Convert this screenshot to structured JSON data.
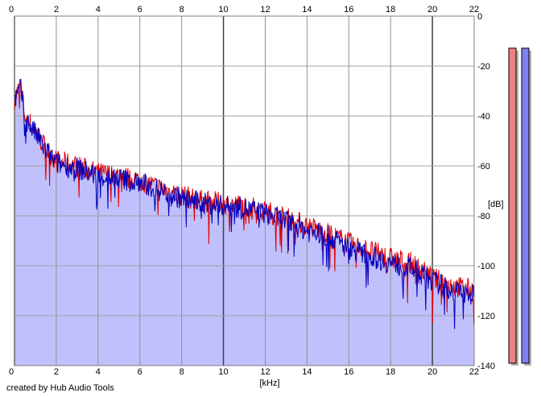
{
  "chart_data": {
    "type": "area",
    "credit": "created by Hub Audio Tools",
    "xlabel": "[kHz]",
    "ylabel": "[dB]",
    "xlim": [
      0,
      22
    ],
    "ylim": [
      -140,
      0
    ],
    "x_ticks": [
      "0",
      "2",
      "4",
      "6",
      "8",
      "10",
      "12",
      "14",
      "16",
      "18",
      "20",
      "22"
    ],
    "y_ticks": [
      "0",
      "-20",
      "-40",
      "-60",
      "-80",
      "-100",
      "-120",
      "-140"
    ],
    "grid": true,
    "fill_color": "#c0c0fc",
    "series": [
      {
        "color": "#e00000",
        "x": [
          0,
          0.3,
          0.5,
          1,
          1.5,
          2,
          3,
          4,
          5,
          6,
          7,
          8,
          9,
          10,
          11,
          12,
          13,
          14,
          15,
          16,
          17,
          18,
          19,
          20,
          21,
          22
        ],
        "values": [
          -33,
          -28,
          -40,
          -46,
          -53,
          -58,
          -60,
          -63,
          -64,
          -66,
          -69,
          -72,
          -74,
          -75,
          -76,
          -78,
          -81,
          -84,
          -87,
          -91,
          -94,
          -97,
          -99,
          -105,
          -108,
          -110
        ]
      },
      {
        "color": "#0000c0",
        "x": [
          0,
          0.3,
          0.5,
          1,
          1.5,
          2,
          3,
          4,
          5,
          6,
          7,
          8,
          9,
          10,
          11,
          12,
          13,
          14,
          15,
          16,
          17,
          18,
          19,
          20,
          21,
          22
        ],
        "values": [
          -34,
          -29,
          -41,
          -47,
          -54,
          -59,
          -61,
          -64,
          -65,
          -67,
          -70,
          -73,
          -75,
          -76,
          -77,
          -79,
          -82,
          -86,
          -88,
          -93,
          -96,
          -99,
          -101,
          -106,
          -110,
          -112
        ]
      }
    ],
    "level_meters": [
      {
        "color": "#f08080",
        "value": -1
      },
      {
        "color": "#8080f0",
        "value": -1
      }
    ]
  }
}
